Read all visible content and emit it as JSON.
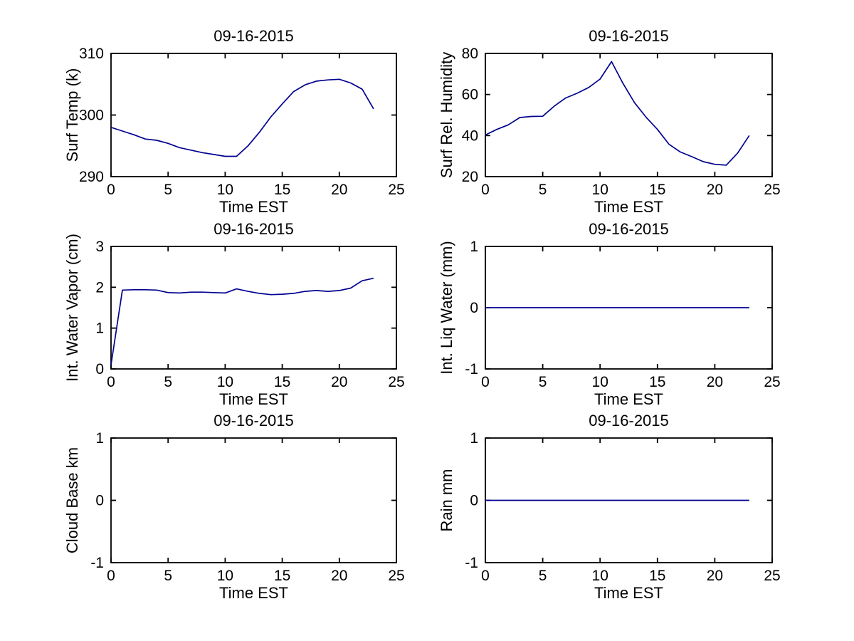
{
  "figure": {
    "background_color": "#ffffff",
    "axis_color": "#000000",
    "line_color": "#000090"
  },
  "chart_data": [
    {
      "id": "surf-temp",
      "type": "line",
      "grid_row": 0,
      "grid_col": 0,
      "title": "09-16-2015",
      "xlabel": "Time EST",
      "ylabel": "Surf Temp (k)",
      "xlim": [
        0,
        25
      ],
      "ylim": [
        290,
        310
      ],
      "xticks": [
        0,
        5,
        10,
        15,
        20,
        25
      ],
      "xtick_labels": [
        "0",
        "5",
        "10",
        "15",
        "20",
        "25"
      ],
      "yticks": [
        290,
        300,
        310
      ],
      "ytick_labels": [
        "290",
        "300",
        "310"
      ],
      "grid": "off",
      "legend": "none",
      "x": [
        0,
        1,
        2,
        3,
        4,
        5,
        6,
        7,
        8,
        9,
        10,
        11,
        12,
        13,
        14,
        15,
        16,
        17,
        18,
        19,
        20,
        21,
        22,
        23
      ],
      "y": [
        298.0,
        297.4,
        296.8,
        296.1,
        295.9,
        295.4,
        294.7,
        294.3,
        293.9,
        293.6,
        293.3,
        293.3,
        295.0,
        297.2,
        299.7,
        301.8,
        303.8,
        304.9,
        305.5,
        305.7,
        305.8,
        305.2,
        304.2,
        301.0
      ]
    },
    {
      "id": "surf-rel-humidity",
      "type": "line",
      "grid_row": 0,
      "grid_col": 1,
      "title": "09-16-2015",
      "xlabel": "Time EST",
      "ylabel": "Surf Rel. Humidity",
      "xlim": [
        0,
        25
      ],
      "ylim": [
        20,
        80
      ],
      "xticks": [
        0,
        5,
        10,
        15,
        20,
        25
      ],
      "xtick_labels": [
        "0",
        "5",
        "10",
        "15",
        "20",
        "25"
      ],
      "yticks": [
        20,
        40,
        60,
        80
      ],
      "ytick_labels": [
        "20",
        "40",
        "60",
        "80"
      ],
      "grid": "off",
      "legend": "none",
      "x": [
        0,
        1,
        2,
        3,
        4,
        5,
        6,
        7,
        8,
        9,
        10,
        11,
        12,
        13,
        14,
        15,
        16,
        17,
        18,
        19,
        20,
        21,
        22,
        23
      ],
      "y": [
        40.3,
        43.0,
        45.2,
        48.8,
        49.3,
        49.4,
        54.3,
        58.3,
        60.6,
        63.4,
        67.5,
        76.0,
        65.4,
        56.0,
        49.0,
        43.0,
        35.8,
        32.0,
        29.7,
        27.3,
        26.0,
        25.6,
        31.5,
        40.0
      ]
    },
    {
      "id": "int-water-vapor",
      "type": "line",
      "grid_row": 1,
      "grid_col": 0,
      "title": "09-16-2015",
      "xlabel": "Time EST",
      "ylabel": "Int. Water Vapor (cm)",
      "xlim": [
        0,
        25
      ],
      "ylim": [
        0,
        3
      ],
      "xticks": [
        0,
        5,
        10,
        15,
        20,
        25
      ],
      "xtick_labels": [
        "0",
        "5",
        "10",
        "15",
        "20",
        "25"
      ],
      "yticks": [
        0,
        1,
        2,
        3
      ],
      "ytick_labels": [
        "0",
        "1",
        "2",
        "3"
      ],
      "grid": "off",
      "legend": "none",
      "x": [
        0,
        1,
        2,
        3,
        4,
        5,
        6,
        7,
        8,
        9,
        10,
        11,
        12,
        13,
        14,
        15,
        16,
        17,
        18,
        19,
        20,
        21,
        22,
        23
      ],
      "y": [
        0.1,
        1.93,
        1.94,
        1.94,
        1.93,
        1.87,
        1.86,
        1.88,
        1.88,
        1.87,
        1.86,
        1.96,
        1.9,
        1.85,
        1.82,
        1.83,
        1.85,
        1.9,
        1.92,
        1.9,
        1.92,
        1.98,
        2.16,
        2.22
      ]
    },
    {
      "id": "int-liq-water",
      "type": "line",
      "grid_row": 1,
      "grid_col": 1,
      "title": "09-16-2015",
      "xlabel": "Time EST",
      "ylabel": "Int. Liq Water (mm)",
      "xlim": [
        0,
        25
      ],
      "ylim": [
        -1,
        1
      ],
      "xticks": [
        0,
        5,
        10,
        15,
        20,
        25
      ],
      "xtick_labels": [
        "0",
        "5",
        "10",
        "15",
        "20",
        "25"
      ],
      "yticks": [
        -1,
        0,
        1
      ],
      "ytick_labels": [
        "-1",
        "0",
        "1"
      ],
      "grid": "off",
      "legend": "none",
      "x": [
        0,
        1,
        2,
        3,
        4,
        5,
        6,
        7,
        8,
        9,
        10,
        11,
        12,
        13,
        14,
        15,
        16,
        17,
        18,
        19,
        20,
        21,
        22,
        23
      ],
      "y": [
        0,
        0,
        0,
        0,
        0,
        0,
        0,
        0,
        0,
        0,
        0,
        0,
        0,
        0,
        0,
        0,
        0,
        0,
        0,
        0,
        0,
        0,
        0,
        0
      ]
    },
    {
      "id": "cloud-base",
      "type": "line",
      "grid_row": 2,
      "grid_col": 0,
      "title": "09-16-2015",
      "xlabel": "Time EST",
      "ylabel": "Cloud Base km",
      "xlim": [
        0,
        25
      ],
      "ylim": [
        -1,
        1
      ],
      "xticks": [
        0,
        5,
        10,
        15,
        20,
        25
      ],
      "xtick_labels": [
        "0",
        "5",
        "10",
        "15",
        "20",
        "25"
      ],
      "yticks": [
        -1,
        0,
        1
      ],
      "ytick_labels": [
        "-1",
        "0",
        "1"
      ],
      "grid": "off",
      "legend": "none",
      "x": [],
      "y": []
    },
    {
      "id": "rain",
      "type": "line",
      "grid_row": 2,
      "grid_col": 1,
      "title": "09-16-2015",
      "xlabel": "Time EST",
      "ylabel": "Rain mm",
      "xlim": [
        0,
        25
      ],
      "ylim": [
        -1,
        1
      ],
      "xticks": [
        0,
        5,
        10,
        15,
        20,
        25
      ],
      "xtick_labels": [
        "0",
        "5",
        "10",
        "15",
        "20",
        "25"
      ],
      "yticks": [
        -1,
        0,
        1
      ],
      "ytick_labels": [
        "-1",
        "0",
        "1"
      ],
      "grid": "off",
      "legend": "none",
      "x": [
        0,
        1,
        2,
        3,
        4,
        5,
        6,
        7,
        8,
        9,
        10,
        11,
        12,
        13,
        14,
        15,
        16,
        17,
        18,
        19,
        20,
        21,
        22,
        23
      ],
      "y": [
        0,
        0,
        0,
        0,
        0,
        0,
        0,
        0,
        0,
        0,
        0,
        0,
        0,
        0,
        0,
        0,
        0,
        0,
        0,
        0,
        0,
        0,
        0,
        0
      ]
    }
  ]
}
